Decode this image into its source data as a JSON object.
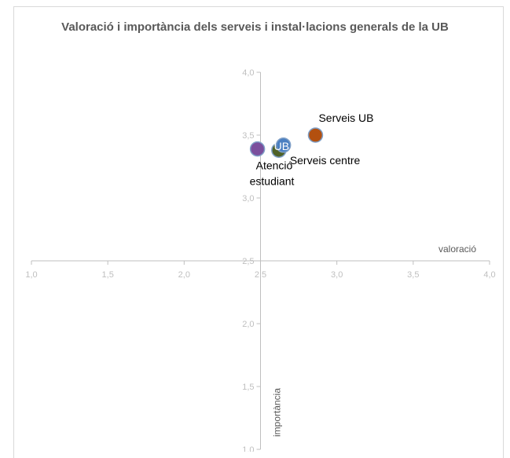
{
  "chart_data": {
    "type": "scatter",
    "title": "Valoració i importància dels serveis i instal·lacions generals de la UB",
    "xlabel": "valoració",
    "ylabel": "importància",
    "xlim": [
      1.0,
      4.0
    ],
    "ylim": [
      1.0,
      4.0
    ],
    "x_ticks": [
      "1,0",
      "1,5",
      "2,0",
      "2,5",
      "3,0",
      "3,5",
      "4,0"
    ],
    "y_ticks": [
      "1,0",
      "1,5",
      "2,0",
      "2,5",
      "3,0",
      "3,5",
      "4,0"
    ],
    "axis_crossing": {
      "x": 2.5,
      "y": 2.5
    },
    "grid": false,
    "legend": "none",
    "points": [
      {
        "label": "Atenció estudiant",
        "x": 2.48,
        "y": 3.39,
        "color": "#7b4f9d"
      },
      {
        "label": "Serveis centre",
        "x": 2.62,
        "y": 3.38,
        "color": "#4f6228"
      },
      {
        "label": "UB",
        "x": 2.65,
        "y": 3.42,
        "color": "#4a7fc1"
      },
      {
        "label": "Serveis UB",
        "x": 2.86,
        "y": 3.5,
        "color": "#b3500f"
      }
    ]
  },
  "colors": {
    "axis": "#bfbfbf",
    "tick_text": "#bfbfbf",
    "label_text": "#000000",
    "axis_title": "#595959",
    "marker_border": "#7f9fc7"
  }
}
